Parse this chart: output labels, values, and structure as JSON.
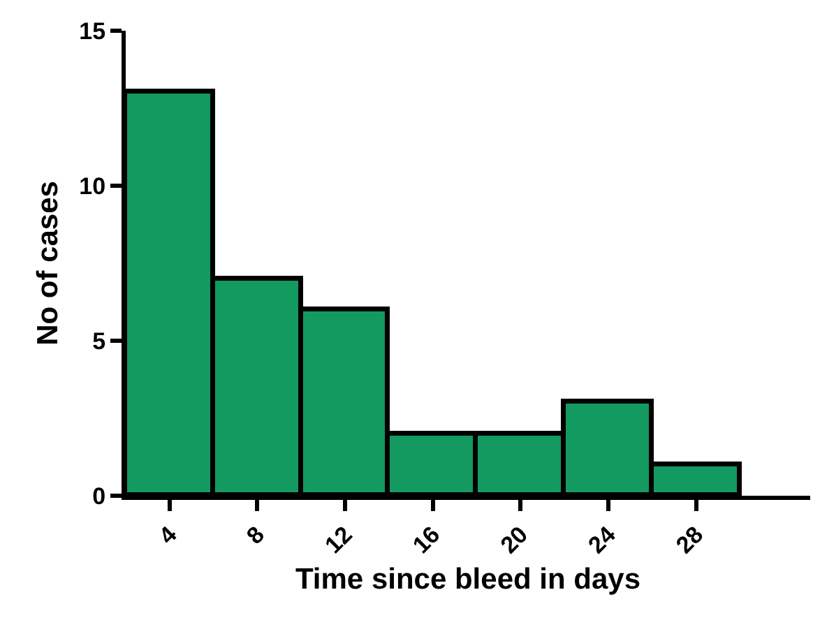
{
  "chart_data": {
    "type": "histogram",
    "xlabel": "Time since bleed in days",
    "ylabel": "No of cases",
    "bins": [
      2,
      6,
      10,
      14,
      18,
      22,
      26,
      30
    ],
    "values": [
      13,
      7,
      6,
      2,
      2,
      3,
      1
    ],
    "color": "#139a60",
    "xlim": [
      2,
      33.2
    ],
    "xticks": [
      4,
      8,
      12,
      16,
      20,
      24,
      28
    ],
    "ylim": [
      0,
      15
    ],
    "yticks": [
      0,
      5,
      10,
      15
    ]
  }
}
